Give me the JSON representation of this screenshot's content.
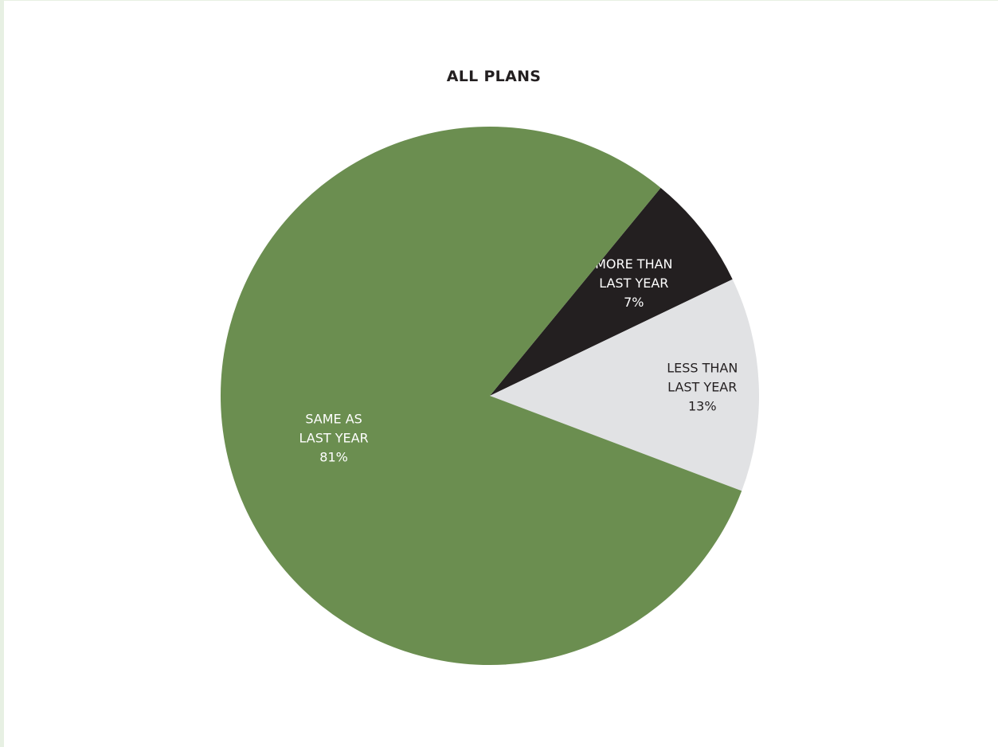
{
  "chart_data": {
    "type": "pie",
    "title": "ALL PLANS",
    "slices": [
      {
        "name": "MORE THAN LAST YEAR",
        "label_lines": [
          "MORE THAN",
          "LAST YEAR"
        ],
        "value": 7,
        "value_label": "7%",
        "color": "#231f20",
        "text_color": "#ffffff"
      },
      {
        "name": "LESS THAN LAST YEAR",
        "label_lines": [
          "LESS THAN",
          "LAST YEAR"
        ],
        "value": 13,
        "value_label": "13%",
        "color": "#e1e2e4",
        "text_color": "#231f20"
      },
      {
        "name": "SAME AS LAST YEAR",
        "label_lines": [
          "SAME AS",
          "LAST YEAR"
        ],
        "value": 81,
        "value_label": "81%",
        "color": "#6b8e50",
        "text_color": "#ffffff"
      }
    ]
  }
}
